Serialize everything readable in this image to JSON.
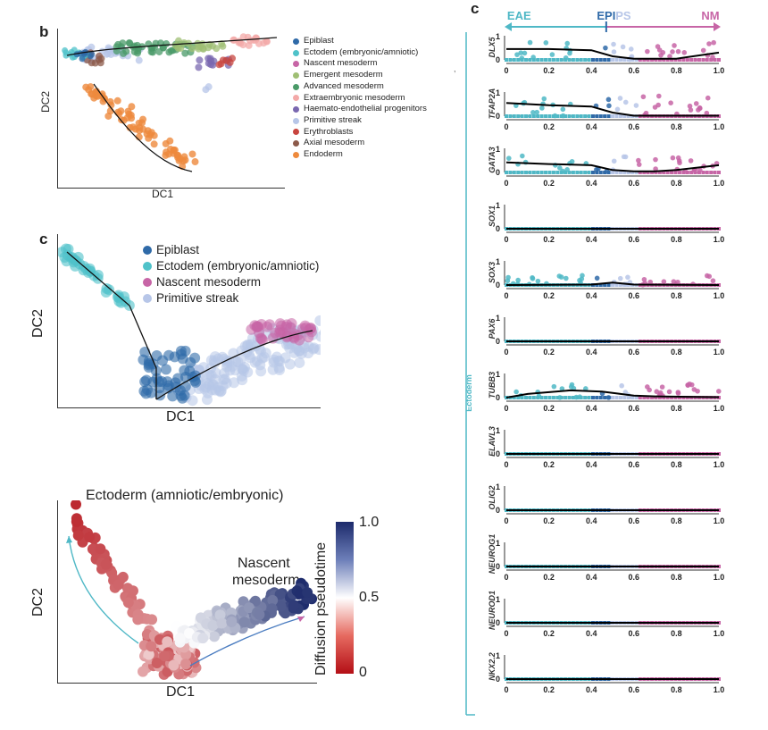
{
  "panels": {
    "b": {
      "letter": "b",
      "xlabel": "DC1",
      "ylabel": "DC2",
      "legend": [
        {
          "label": "Epiblast",
          "color": "#2f6aa8"
        },
        {
          "label": "Ectodem (embryonic/amniotic)",
          "color": "#4fc2c9"
        },
        {
          "label": "Nascent mesoderm",
          "color": "#c765a6"
        },
        {
          "label": "Emergent mesoderm",
          "color": "#9fbf74"
        },
        {
          "label": "Advanced mesoderm",
          "color": "#4a9a68"
        },
        {
          "label": "Extraembryonic mesoderm",
          "color": "#f3a9a8"
        },
        {
          "label": "Haemato-endothelial progenitors",
          "color": "#7a68b0"
        },
        {
          "label": "Primitive streak",
          "color": "#b7c6e8"
        },
        {
          "label": "Erythroblasts",
          "color": "#c8453f"
        },
        {
          "label": "Axial mesoderm",
          "color": "#8c5a4a"
        },
        {
          "label": "Endoderm",
          "color": "#ee8a3d"
        }
      ]
    },
    "c_left": {
      "letter": "c",
      "xlabel": "DC1",
      "ylabel": "DC2",
      "legend": [
        {
          "label": "Epiblast",
          "color": "#2f6aa8"
        },
        {
          "label": "Ectodem (embryonic/amniotic)",
          "color": "#4fc2c9"
        },
        {
          "label": "Nascent mesoderm",
          "color": "#c765a6"
        },
        {
          "label": "Primitive streak",
          "color": "#b7c6e8"
        }
      ]
    },
    "pseudotime": {
      "label_ectoderm": "Ectoderm (amniotic/embryonic)",
      "label_nascent_1": "Nascent",
      "label_nascent_2": "mesoderm",
      "xlabel": "DC1",
      "ylabel": "DC2",
      "colorbar_label": "Diffusion pseudotime",
      "colorbar_ticks": [
        "1.0",
        "0.5",
        "0"
      ]
    },
    "c_right": {
      "letter": "c",
      "top_labels": {
        "eae": "EAE",
        "epi": "EPI",
        "ps": "PS",
        "nm": "NM"
      },
      "side_label": "Ectoderm",
      "x_ticks": [
        "0",
        "0.2",
        "0.4",
        "0.6",
        "0.8",
        "1.0"
      ],
      "y_ticks": [
        "0",
        "1"
      ],
      "stray_mark": ","
    }
  },
  "chart_data": [
    {
      "type": "scatter",
      "title": "",
      "xlabel": "DC1",
      "ylabel": "DC2",
      "series": [
        {
          "name": "Epiblast"
        },
        {
          "name": "Ectodem (embryonic/amniotic)"
        },
        {
          "name": "Nascent mesoderm"
        },
        {
          "name": "Emergent mesoderm"
        },
        {
          "name": "Advanced mesoderm"
        },
        {
          "name": "Extraembryonic mesoderm"
        },
        {
          "name": "Haemato-endothelial progenitors"
        },
        {
          "name": "Primitive streak"
        },
        {
          "name": "Erythroblasts"
        },
        {
          "name": "Axial mesoderm"
        },
        {
          "name": "Endoderm"
        }
      ]
    },
    {
      "type": "scatter",
      "title": "",
      "xlabel": "DC1",
      "ylabel": "DC2",
      "series": [
        {
          "name": "Epiblast"
        },
        {
          "name": "Ectodem (embryonic/amniotic)"
        },
        {
          "name": "Nascent mesoderm"
        },
        {
          "name": "Primitive streak"
        }
      ]
    },
    {
      "type": "scatter",
      "xlabel": "DC1",
      "ylabel": "DC2",
      "colorbar": {
        "label": "Diffusion pseudotime",
        "range": [
          0,
          1.0
        ]
      }
    },
    {
      "type": "line",
      "xlim": [
        0,
        1.0
      ],
      "ylim": [
        0,
        1
      ],
      "x_ticks": [
        0,
        0.2,
        0.4,
        0.6,
        0.8,
        1.0
      ],
      "series": [
        {
          "name": "DLX5",
          "x": [
            0,
            0.2,
            0.4,
            0.5,
            0.6,
            0.7,
            0.8,
            1.0
          ],
          "values": [
            0.45,
            0.45,
            0.4,
            0.15,
            0.05,
            0.05,
            0.05,
            0.3
          ]
        },
        {
          "name": "TFAP2A",
          "x": [
            0,
            0.2,
            0.4,
            0.5,
            0.6,
            0.7,
            0.8,
            1.0
          ],
          "values": [
            0.55,
            0.45,
            0.4,
            0.15,
            0.02,
            0.02,
            0.02,
            0.02
          ]
        },
        {
          "name": "GATA3",
          "x": [
            0,
            0.2,
            0.4,
            0.5,
            0.6,
            0.7,
            0.8,
            1.0
          ],
          "values": [
            0.42,
            0.35,
            0.3,
            0.1,
            0.05,
            0.05,
            0.1,
            0.3
          ]
        },
        {
          "name": "SOX1",
          "x": [
            0,
            1.0
          ],
          "values": [
            0,
            0
          ]
        },
        {
          "name": "SOX3",
          "x": [
            0,
            0.4,
            0.5,
            0.6,
            1.0
          ],
          "values": [
            0,
            0.02,
            0.1,
            0.02,
            0
          ]
        },
        {
          "name": "PAX6",
          "x": [
            0,
            1.0
          ],
          "values": [
            0,
            0
          ]
        },
        {
          "name": "TUBB3",
          "x": [
            0,
            0.1,
            0.3,
            0.45,
            0.6,
            0.7,
            1.0
          ],
          "values": [
            0,
            0.15,
            0.3,
            0.25,
            0.08,
            0.05,
            0.02
          ]
        },
        {
          "name": "ELAVL3",
          "x": [
            0,
            1.0
          ],
          "values": [
            0,
            0
          ]
        },
        {
          "name": "OLIG2",
          "x": [
            0,
            1.0
          ],
          "values": [
            0,
            0
          ]
        },
        {
          "name": "NEUROG1",
          "x": [
            0,
            1.0
          ],
          "values": [
            0,
            0
          ]
        },
        {
          "name": "NEUROD1",
          "x": [
            0,
            1.0
          ],
          "values": [
            0,
            0
          ]
        },
        {
          "name": "NKX2.2",
          "x": [
            0,
            1.0
          ],
          "values": [
            0,
            0
          ]
        }
      ]
    }
  ],
  "colors": {
    "eae": "#4fb8c6",
    "epi": "#2f6aa8",
    "ps": "#b7c6e8",
    "nm": "#c765a6",
    "pseudotime_high": "#1c2a6b",
    "pseudotime_mid": "#ffffff",
    "pseudotime_low": "#b40f16"
  }
}
